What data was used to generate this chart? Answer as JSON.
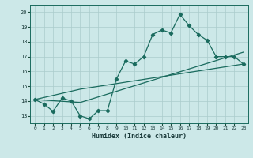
{
  "xlabel": "Humidex (Indice chaleur)",
  "bg_color": "#cce8e8",
  "line_color": "#1a6b5e",
  "grid_color": "#aacccc",
  "xlim": [
    -0.5,
    23.5
  ],
  "ylim": [
    12.5,
    20.5
  ],
  "yticks": [
    13,
    14,
    15,
    16,
    17,
    18,
    19,
    20
  ],
  "xticks": [
    0,
    1,
    2,
    3,
    4,
    5,
    6,
    7,
    8,
    9,
    10,
    11,
    12,
    13,
    14,
    15,
    16,
    17,
    18,
    19,
    20,
    21,
    22,
    23
  ],
  "series1_x": [
    0,
    1,
    2,
    3,
    4,
    5,
    6,
    7,
    8,
    9,
    10,
    11,
    12,
    13,
    14,
    15,
    16,
    17,
    18,
    19,
    20,
    21,
    22,
    23
  ],
  "series1_y": [
    14.1,
    13.8,
    13.3,
    14.2,
    14.0,
    13.0,
    12.8,
    13.35,
    13.35,
    15.5,
    16.7,
    16.5,
    17.0,
    18.5,
    18.8,
    18.6,
    19.85,
    19.1,
    18.5,
    18.1,
    17.0,
    17.0,
    17.0,
    16.5
  ],
  "series2_x": [
    0,
    5,
    23
  ],
  "series2_y": [
    14.1,
    13.9,
    17.3
  ],
  "series3_x": [
    0,
    5,
    23
  ],
  "series3_y": [
    14.1,
    14.8,
    16.5
  ]
}
